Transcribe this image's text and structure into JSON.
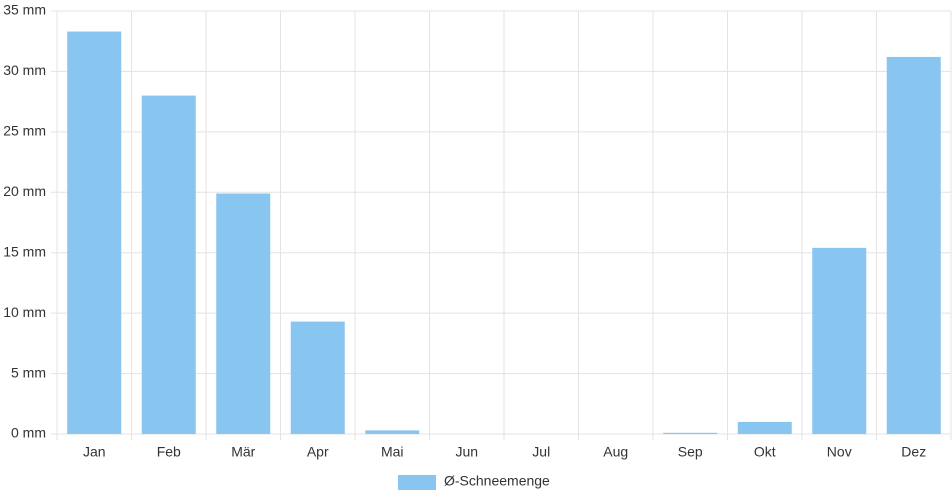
{
  "chart_data": {
    "type": "bar",
    "categories": [
      "Jan",
      "Feb",
      "Mär",
      "Apr",
      "Mai",
      "Jun",
      "Jul",
      "Aug",
      "Sep",
      "Okt",
      "Nov",
      "Dez"
    ],
    "series": [
      {
        "name": "Ø-Schneemenge",
        "color": "#88c5f1",
        "values": [
          33.3,
          28,
          19.9,
          9.3,
          0.3,
          0,
          0,
          0,
          0.1,
          1,
          15.4,
          31.2
        ]
      }
    ],
    "ylim": [
      0,
      35
    ],
    "yticks": [
      {
        "value": 0,
        "label": "0 mm"
      },
      {
        "value": 5,
        "label": "5 mm"
      },
      {
        "value": 10,
        "label": "10 mm"
      },
      {
        "value": 15,
        "label": "15 mm"
      },
      {
        "value": 20,
        "label": "20 mm"
      },
      {
        "value": 25,
        "label": "25 mm"
      },
      {
        "value": 30,
        "label": "30 mm"
      },
      {
        "value": 35,
        "label": "35 mm"
      }
    ],
    "grid": true,
    "legend": "bottom"
  }
}
